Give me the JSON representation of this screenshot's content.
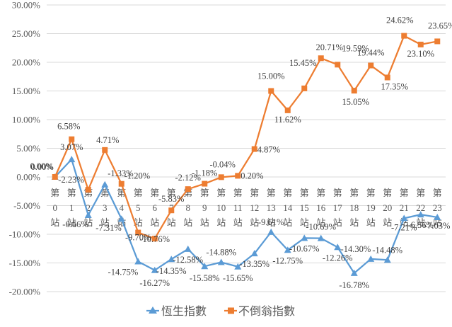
{
  "chart_data": {
    "type": "line",
    "title": "",
    "xlabel": "",
    "ylabel": "",
    "ylim": [
      -20,
      30
    ],
    "y_tick_step": 5,
    "y_tick_labels": [
      "-20.00%",
      "-15.00%",
      "-10.00%",
      "-5.00%",
      "0.00%",
      "5.00%",
      "10.00%",
      "15.00%",
      "20.00%",
      "25.00%",
      "30.00%"
    ],
    "gridlines": true,
    "categories": [
      [
        "第",
        "0",
        "站"
      ],
      [
        "第",
        "1",
        "站"
      ],
      [
        "第",
        "2",
        "站"
      ],
      [
        "第",
        "3",
        "站"
      ],
      [
        "第",
        "4",
        "站"
      ],
      [
        "第",
        "5",
        "站"
      ],
      [
        "第",
        "6",
        "站"
      ],
      [
        "第",
        "7",
        "站"
      ],
      [
        "第",
        "8",
        "站"
      ],
      [
        "第",
        "9",
        "站"
      ],
      [
        "第",
        "10",
        "站"
      ],
      [
        "第",
        "11",
        "站"
      ],
      [
        "第",
        "12",
        "站"
      ],
      [
        "第",
        "13",
        "站"
      ],
      [
        "第",
        "14",
        "站"
      ],
      [
        "第",
        "15",
        "站"
      ],
      [
        "第",
        "16",
        "站"
      ],
      [
        "第",
        "17",
        "站"
      ],
      [
        "第",
        "18",
        "站"
      ],
      [
        "第",
        "19",
        "站"
      ],
      [
        "第",
        "20",
        "站"
      ],
      [
        "第",
        "21",
        "站"
      ],
      [
        "第",
        "22",
        "站"
      ],
      [
        "第",
        "23",
        "站"
      ]
    ],
    "series": [
      {
        "name": "恆生指數",
        "color": "#5B9BD5",
        "marker": "triangle",
        "values": [
          0,
          3.07,
          -6.66,
          -1.33,
          -7.31,
          -14.75,
          -16.27,
          -14.35,
          -12.58,
          -15.58,
          -14.88,
          -15.65,
          -13.35,
          -9.61,
          -12.75,
          -10.67,
          -10.69,
          -12.26,
          -16.78,
          -14.3,
          -14.48,
          -7.21,
          -6.56,
          -7.03
        ],
        "labels": [
          "0.00%",
          "3.07%",
          "-6.66%",
          "-1.33%",
          "-7.31%",
          "-14.75%",
          "-16.27%",
          "-14.35%",
          "-12.58%",
          "-15.58%",
          "-14.88%",
          "-15.65%",
          "-13.35%",
          "-9.61%",
          "-12.75%",
          "-10.67%",
          "-10.69%",
          "-12.26%",
          "-16.78%",
          "-14.30%",
          "-14.48%",
          "-7.21%",
          "-6.56%",
          "-7.03%"
        ]
      },
      {
        "name": "不倒翁指數",
        "color": "#ED7D31",
        "marker": "square",
        "values": [
          0,
          6.58,
          -2.23,
          4.71,
          -1.2,
          -9.7,
          -10.76,
          -5.83,
          -2.12,
          -1.18,
          -0.04,
          0.2,
          4.87,
          15.0,
          11.62,
          15.45,
          20.71,
          19.59,
          15.05,
          19.44,
          17.35,
          24.62,
          23.1,
          23.65
        ],
        "labels": [
          "0.00%",
          "6.58%",
          "-2.23%",
          "4.71%",
          "-1.20%",
          "-9.70%",
          "-10.76%",
          "-5.83%",
          "-2.12%",
          "-1.18%",
          "-0.04%",
          "0.20%",
          "4.87%",
          "15.00%",
          "11.62%",
          "15.45%",
          "20.71%",
          "19.59%",
          "15.05%",
          "19.44%",
          "17.35%",
          "24.62%",
          "23.10%",
          "23.65%"
        ]
      }
    ],
    "legend_position": "bottom"
  }
}
